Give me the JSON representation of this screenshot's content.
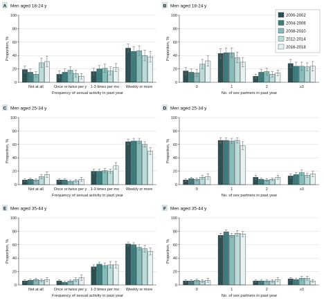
{
  "colors": {
    "s2000": "#2e4f52",
    "s2004": "#3d7b7d",
    "s2008": "#86bdbb",
    "s2012": "#bcdcdb",
    "s2016": "#e6f2f2",
    "panel_bg": "#d6e3e8",
    "axis": "#333333"
  },
  "legend": {
    "placement": "top-right",
    "entries": [
      "2000-2002",
      "2004-2006",
      "2008-2010",
      "2012-2014",
      "2016-2018"
    ]
  },
  "chart_data": [
    {
      "type": "bar",
      "id": "A",
      "letter": "A",
      "title": "Men aged 18-24 y",
      "xlabel": "Frequency of sexual activity in past year",
      "ylabel": "Proportion, %",
      "ylim": [
        0,
        100
      ],
      "yticks": [
        0,
        20,
        40,
        60,
        80,
        100
      ],
      "grid": true,
      "categories": [
        "Not at all",
        "Once or twice per y",
        "1-3 times per mo",
        "Weekly or more"
      ],
      "series": [
        {
          "name": "2000-2002",
          "values": [
            19,
            12,
            16,
            51
          ],
          "err": [
            5,
            5,
            5,
            6
          ]
        },
        {
          "name": "2004-2006",
          "values": [
            15,
            15,
            20,
            46
          ],
          "err": [
            5,
            5,
            5,
            7
          ]
        },
        {
          "name": "2008-2010",
          "values": [
            12,
            18,
            21,
            47
          ],
          "err": [
            4,
            5,
            6,
            7
          ]
        },
        {
          "name": "2012-2014",
          "values": [
            29,
            13,
            17,
            40
          ],
          "err": [
            7,
            5,
            6,
            8
          ]
        },
        {
          "name": "2016-2018",
          "values": [
            31,
            9,
            22,
            38
          ],
          "err": [
            8,
            4,
            6,
            8
          ]
        }
      ]
    },
    {
      "type": "bar",
      "id": "B",
      "letter": "B",
      "title": "Men aged 18-24 y",
      "xlabel": "No. of sex partners in past year",
      "ylabel": "Proportion, %",
      "ylim": [
        0,
        100
      ],
      "yticks": [
        0,
        20,
        40,
        60,
        80,
        100
      ],
      "grid": true,
      "categories": [
        "0",
        "1",
        "2",
        "≥3"
      ],
      "series": [
        {
          "name": "2000-2002",
          "values": [
            17,
            43,
            9,
            28
          ],
          "err": [
            5,
            7,
            3,
            6
          ]
        },
        {
          "name": "2004-2006",
          "values": [
            15,
            44,
            15,
            24
          ],
          "err": [
            5,
            7,
            4,
            6
          ]
        },
        {
          "name": "2008-2010",
          "values": [
            14,
            44,
            16,
            24
          ],
          "err": [
            5,
            7,
            5,
            6
          ]
        },
        {
          "name": "2012-2014",
          "values": [
            27,
            37,
            12,
            23
          ],
          "err": [
            7,
            8,
            4,
            6
          ]
        },
        {
          "name": "2016-2018",
          "values": [
            32,
            30,
            14,
            24
          ],
          "err": [
            8,
            7,
            4,
            7
          ]
        }
      ]
    },
    {
      "type": "bar",
      "id": "C",
      "letter": "C",
      "title": "Men aged 25-34 y",
      "xlabel": "Frequency of sexual activity in past year",
      "ylabel": "Proportion, %",
      "ylim": [
        0,
        100
      ],
      "yticks": [
        0,
        20,
        40,
        60,
        80,
        100
      ],
      "grid": true,
      "categories": [
        "Not at all",
        "Once or twice per y",
        "1-3 times per mo",
        "Weekly or more"
      ],
      "series": [
        {
          "name": "2000-2002",
          "values": [
            7,
            7,
            20,
            64
          ],
          "err": [
            2,
            2,
            3,
            4
          ]
        },
        {
          "name": "2004-2006",
          "values": [
            8,
            7,
            20,
            65
          ],
          "err": [
            2,
            2,
            3,
            4
          ]
        },
        {
          "name": "2008-2010",
          "values": [
            7,
            5,
            21,
            65
          ],
          "err": [
            2,
            2,
            3,
            4
          ]
        },
        {
          "name": "2012-2014",
          "values": [
            12,
            6,
            20,
            60
          ],
          "err": [
            3,
            2,
            3,
            4
          ]
        },
        {
          "name": "2016-2018",
          "values": [
            15,
            8,
            28,
            50
          ],
          "err": [
            4,
            3,
            5,
            5
          ]
        }
      ]
    },
    {
      "type": "bar",
      "id": "D",
      "letter": "D",
      "title": "Men aged 25-34 y",
      "xlabel": "No. of sex partners in past year",
      "ylabel": "Proportion, %",
      "ylim": [
        0,
        100
      ],
      "yticks": [
        0,
        20,
        40,
        60,
        80,
        100
      ],
      "grid": true,
      "categories": [
        "0",
        "1",
        "2",
        "≥3"
      ],
      "series": [
        {
          "name": "2000-2002",
          "values": [
            7,
            66,
            11,
            13
          ],
          "err": [
            2,
            4,
            3,
            3
          ]
        },
        {
          "name": "2004-2006",
          "values": [
            9,
            66,
            8,
            15
          ],
          "err": [
            2,
            4,
            2,
            3
          ]
        },
        {
          "name": "2008-2010",
          "values": [
            8,
            65,
            7,
            18
          ],
          "err": [
            2,
            4,
            2,
            4
          ]
        },
        {
          "name": "2012-2014",
          "values": [
            11,
            66,
            8,
            14
          ],
          "err": [
            3,
            4,
            2,
            3
          ]
        },
        {
          "name": "2016-2018",
          "values": [
            12,
            58,
            11,
            16
          ],
          "err": [
            4,
            6,
            3,
            4
          ]
        }
      ]
    },
    {
      "type": "bar",
      "id": "E",
      "letter": "E",
      "title": "Men aged 35-44 y",
      "xlabel": "Frequency of sexual activity in past year",
      "ylabel": "Proportion, %",
      "ylim": [
        0,
        100
      ],
      "yticks": [
        0,
        20,
        40,
        60,
        80,
        100
      ],
      "grid": true,
      "categories": [
        "Not at all",
        "Once or twice per y",
        "1-3 times per mo",
        "Weekly or more"
      ],
      "series": [
        {
          "name": "2000-2002",
          "values": [
            6,
            6,
            27,
            61
          ],
          "err": [
            2,
            2,
            3,
            3
          ]
        },
        {
          "name": "2004-2006",
          "values": [
            7,
            4,
            31,
            60
          ],
          "err": [
            2,
            2,
            3,
            3
          ]
        },
        {
          "name": "2008-2010",
          "values": [
            8,
            6,
            29,
            56
          ],
          "err": [
            2,
            2,
            4,
            4
          ]
        },
        {
          "name": "2012-2014",
          "values": [
            7,
            8,
            30,
            54
          ],
          "err": [
            2,
            3,
            5,
            5
          ]
        },
        {
          "name": "2016-2018",
          "values": [
            8,
            11,
            30,
            50
          ],
          "err": [
            3,
            4,
            5,
            5
          ]
        }
      ]
    },
    {
      "type": "bar",
      "id": "F",
      "letter": "F",
      "title": "Men aged 35-44 y",
      "xlabel": "No. of sex partners in past year",
      "ylabel": "Proportion, %",
      "ylim": [
        0,
        100
      ],
      "yticks": [
        0,
        20,
        40,
        60,
        80,
        100
      ],
      "grid": true,
      "categories": [
        "0",
        "1",
        "2",
        "≥3"
      ],
      "series": [
        {
          "name": "2000-2002",
          "values": [
            6,
            74,
            6,
            9
          ],
          "err": [
            2,
            3,
            2,
            2
          ]
        },
        {
          "name": "2004-2006",
          "values": [
            6,
            79,
            6,
            8
          ],
          "err": [
            2,
            3,
            2,
            2
          ]
        },
        {
          "name": "2008-2010",
          "values": [
            7,
            74,
            6,
            10
          ],
          "err": [
            2,
            3,
            2,
            3
          ]
        },
        {
          "name": "2012-2014",
          "values": [
            6,
            77,
            6,
            10
          ],
          "err": [
            2,
            4,
            2,
            3
          ]
        },
        {
          "name": "2016-2018",
          "values": [
            7,
            76,
            8,
            6
          ],
          "err": [
            3,
            4,
            3,
            2
          ]
        }
      ]
    }
  ]
}
